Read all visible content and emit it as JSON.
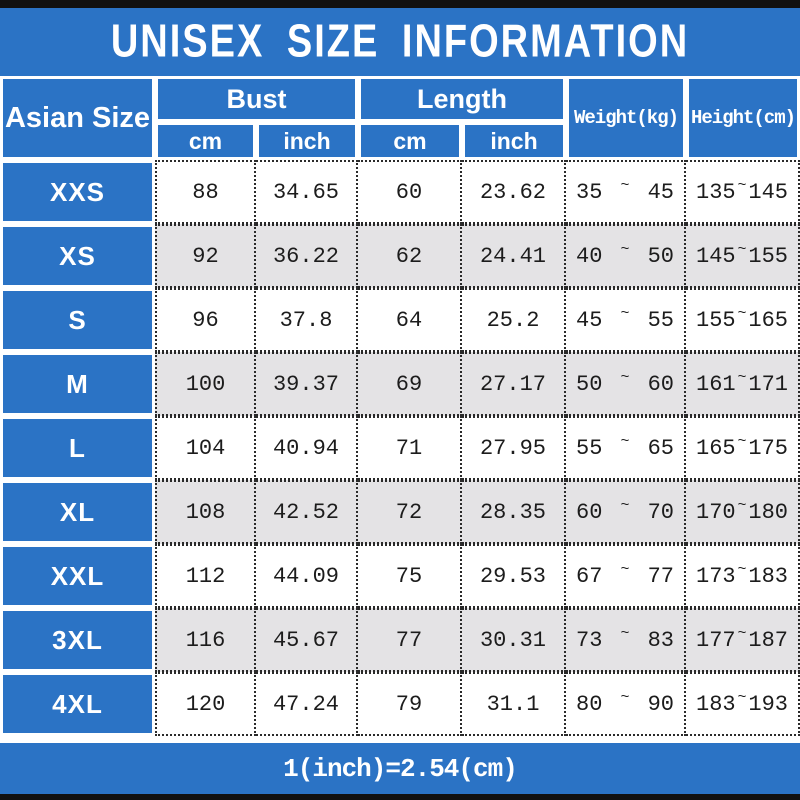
{
  "colors": {
    "blue": "#2b73c5",
    "row_gray": "#e4e3e5",
    "bar_black": "#111111",
    "text_dark": "#1c1c1c"
  },
  "header": {
    "title": "UNISEX SIZE INFORMATION"
  },
  "table": {
    "asian_size_label": "Asian Size",
    "bust_label": "Bust",
    "length_label": "Length",
    "cm_label": "cm",
    "inch_label": "inch",
    "weight_label": "Weight(kg)",
    "height_label": "Height(cm)",
    "tilde": "~",
    "rows": [
      {
        "size": "XXS",
        "bust_cm": "88",
        "bust_inch": "34.65",
        "length_cm": "60",
        "length_inch": "23.62",
        "weight_min": "35",
        "weight_max": "45",
        "height_min": "135",
        "height_max": "145"
      },
      {
        "size": "XS",
        "bust_cm": "92",
        "bust_inch": "36.22",
        "length_cm": "62",
        "length_inch": "24.41",
        "weight_min": "40",
        "weight_max": "50",
        "height_min": "145",
        "height_max": "155"
      },
      {
        "size": "S",
        "bust_cm": "96",
        "bust_inch": "37.8",
        "length_cm": "64",
        "length_inch": "25.2",
        "weight_min": "45",
        "weight_max": "55",
        "height_min": "155",
        "height_max": "165"
      },
      {
        "size": "M",
        "bust_cm": "100",
        "bust_inch": "39.37",
        "length_cm": "69",
        "length_inch": "27.17",
        "weight_min": "50",
        "weight_max": "60",
        "height_min": "161",
        "height_max": "171"
      },
      {
        "size": "L",
        "bust_cm": "104",
        "bust_inch": "40.94",
        "length_cm": "71",
        "length_inch": "27.95",
        "weight_min": "55",
        "weight_max": "65",
        "height_min": "165",
        "height_max": "175"
      },
      {
        "size": "XL",
        "bust_cm": "108",
        "bust_inch": "42.52",
        "length_cm": "72",
        "length_inch": "28.35",
        "weight_min": "60",
        "weight_max": "70",
        "height_min": "170",
        "height_max": "180"
      },
      {
        "size": "XXL",
        "bust_cm": "112",
        "bust_inch": "44.09",
        "length_cm": "75",
        "length_inch": "29.53",
        "weight_min": "67",
        "weight_max": "77",
        "height_min": "173",
        "height_max": "183"
      },
      {
        "size": "3XL",
        "bust_cm": "116",
        "bust_inch": "45.67",
        "length_cm": "77",
        "length_inch": "30.31",
        "weight_min": "73",
        "weight_max": "83",
        "height_min": "177",
        "height_max": "187"
      },
      {
        "size": "4XL",
        "bust_cm": "120",
        "bust_inch": "47.24",
        "length_cm": "79",
        "length_inch": "31.1",
        "weight_min": "80",
        "weight_max": "90",
        "height_min": "183",
        "height_max": "193"
      }
    ]
  },
  "footer": {
    "note": "1(inch)=2.54(cm)"
  }
}
